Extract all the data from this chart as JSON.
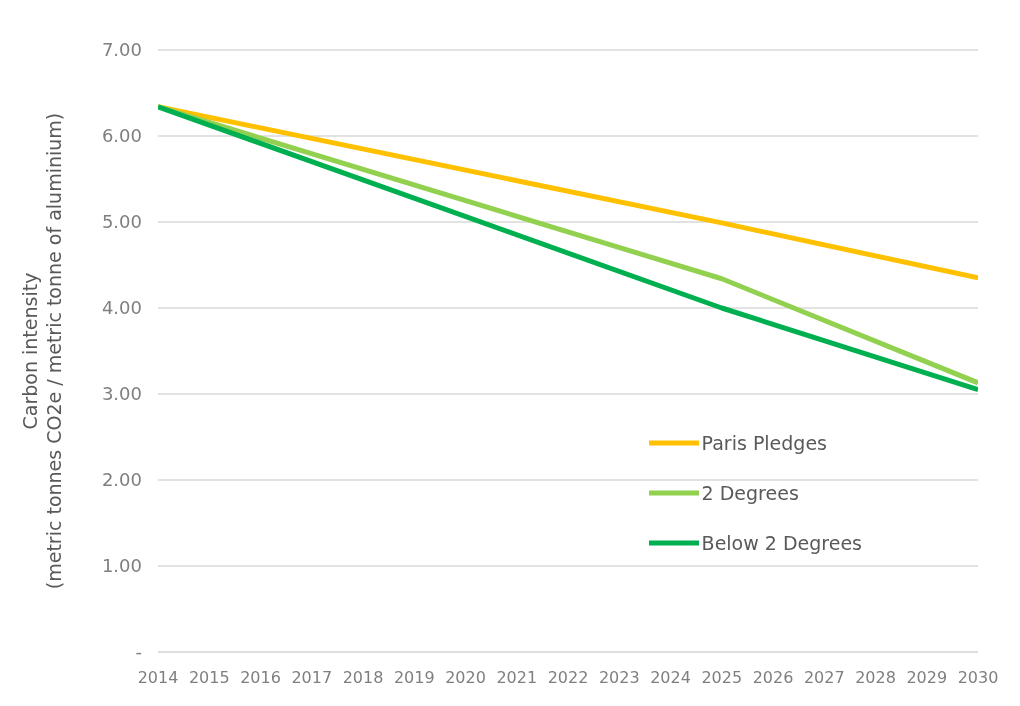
{
  "chart_data": {
    "type": "line",
    "ylabel": "Carbon intensity\n(metric tonnes CO2e / metric tonne of aluminium)",
    "xlim": [
      2014,
      2030
    ],
    "xticks": [
      2014,
      2015,
      2016,
      2017,
      2018,
      2019,
      2020,
      2021,
      2022,
      2023,
      2024,
      2025,
      2026,
      2027,
      2028,
      2029,
      2030
    ],
    "ylim": [
      0,
      7
    ],
    "yticks": [
      {
        "value": 0,
        "label": "-"
      },
      {
        "value": 1,
        "label": "1.00"
      },
      {
        "value": 2,
        "label": "2.00"
      },
      {
        "value": 3,
        "label": "3.00"
      },
      {
        "value": 4,
        "label": "4.00"
      },
      {
        "value": 5,
        "label": "5.00"
      },
      {
        "value": 6,
        "label": "6.00"
      },
      {
        "value": 7,
        "label": "7.00"
      }
    ],
    "grid": "y",
    "legend": "bottom right",
    "marker": "none",
    "line_style": "solid",
    "series": [
      {
        "name": "Paris Pledges",
        "color": "#ffc000",
        "x": [
          2014,
          2025,
          2030
        ],
        "values": [
          6.34,
          4.99,
          4.35
        ]
      },
      {
        "name": "2 Degrees",
        "color": "#92d050",
        "x": [
          2014,
          2025,
          2030
        ],
        "values": [
          6.34,
          4.34,
          3.13
        ]
      },
      {
        "name": "Below 2 Degrees",
        "color": "#00b050",
        "x": [
          2014,
          2025,
          2030
        ],
        "values": [
          6.34,
          4.0,
          3.05
        ]
      }
    ]
  }
}
